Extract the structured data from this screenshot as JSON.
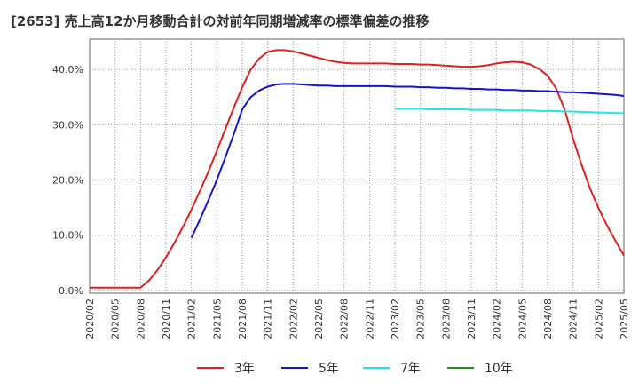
{
  "title": "[2653]  売上高12か月移動合計の対前年同期増減率の標準偏差の推移",
  "chart_data": {
    "type": "line",
    "title": "[2653]  売上高12か月移動合計の対前年同期増減率の標準偏差の推移",
    "xlabel": "",
    "ylabel": "",
    "x_tick_labels": [
      "2020/02",
      "2020/05",
      "2020/08",
      "2020/11",
      "2021/02",
      "2021/05",
      "2021/08",
      "2021/11",
      "2022/02",
      "2022/05",
      "2022/08",
      "2022/11",
      "2023/02",
      "2023/05",
      "2023/08",
      "2023/11",
      "2024/02",
      "2024/05",
      "2024/08",
      "2024/11",
      "2025/02",
      "2025/05"
    ],
    "y_tick_labels": [
      "0.0%",
      "10.0%",
      "20.0%",
      "30.0%",
      "40.0%"
    ],
    "ylim": [
      -0.5,
      45.5
    ],
    "grid": true,
    "legend_position": "bottom",
    "series": [
      {
        "name": "3年",
        "color": "#e02020",
        "values": [
          0.5,
          0.5,
          0.5,
          0.5,
          0.5,
          0.5,
          0.5,
          1.8,
          3.7,
          6.0,
          8.6,
          11.5,
          14.6,
          18.0,
          21.5,
          25.3,
          29.2,
          33.1,
          36.8,
          40.0,
          42.0,
          43.2,
          43.5,
          43.5,
          43.3,
          42.9,
          42.5,
          42.1,
          41.7,
          41.4,
          41.2,
          41.1,
          41.1,
          41.1,
          41.1,
          41.1,
          41.0,
          41.0,
          41.0,
          40.9,
          40.9,
          40.8,
          40.7,
          40.6,
          40.5,
          40.5,
          40.6,
          40.8,
          41.1,
          41.3,
          41.4,
          41.3,
          40.9,
          40.1,
          38.9,
          36.6,
          32.8,
          27.5,
          22.8,
          18.5,
          14.9,
          11.8,
          9.0,
          6.3
        ]
      },
      {
        "name": "5年",
        "color": "#1515c8",
        "values": [
          null,
          null,
          null,
          null,
          null,
          null,
          null,
          null,
          null,
          null,
          null,
          null,
          9.5,
          12.8,
          16.3,
          20.0,
          24.1,
          28.3,
          32.8,
          35.0,
          36.2,
          36.9,
          37.3,
          37.4,
          37.4,
          37.3,
          37.2,
          37.1,
          37.1,
          37.0,
          37.0,
          37.0,
          37.0,
          37.0,
          37.0,
          37.0,
          36.9,
          36.9,
          36.9,
          36.8,
          36.8,
          36.7,
          36.7,
          36.6,
          36.6,
          36.5,
          36.5,
          36.4,
          36.4,
          36.3,
          36.3,
          36.2,
          36.2,
          36.1,
          36.1,
          36.0,
          35.9,
          35.9,
          35.8,
          35.7,
          35.6,
          35.5,
          35.4,
          35.2
        ]
      },
      {
        "name": "7年",
        "color": "#22e4e4",
        "values": [
          null,
          null,
          null,
          null,
          null,
          null,
          null,
          null,
          null,
          null,
          null,
          null,
          null,
          null,
          null,
          null,
          null,
          null,
          null,
          null,
          null,
          null,
          null,
          null,
          null,
          null,
          null,
          null,
          null,
          null,
          null,
          null,
          null,
          null,
          null,
          null,
          32.9,
          32.9,
          32.9,
          32.9,
          32.8,
          32.8,
          32.8,
          32.8,
          32.8,
          32.7,
          32.7,
          32.7,
          32.7,
          32.6,
          32.6,
          32.6,
          32.6,
          32.5,
          32.5,
          32.5,
          32.4,
          32.4,
          32.3,
          32.3,
          32.2,
          32.2,
          32.1,
          32.1
        ]
      },
      {
        "name": "10年",
        "color": "#2a8a2a",
        "values": []
      }
    ]
  }
}
